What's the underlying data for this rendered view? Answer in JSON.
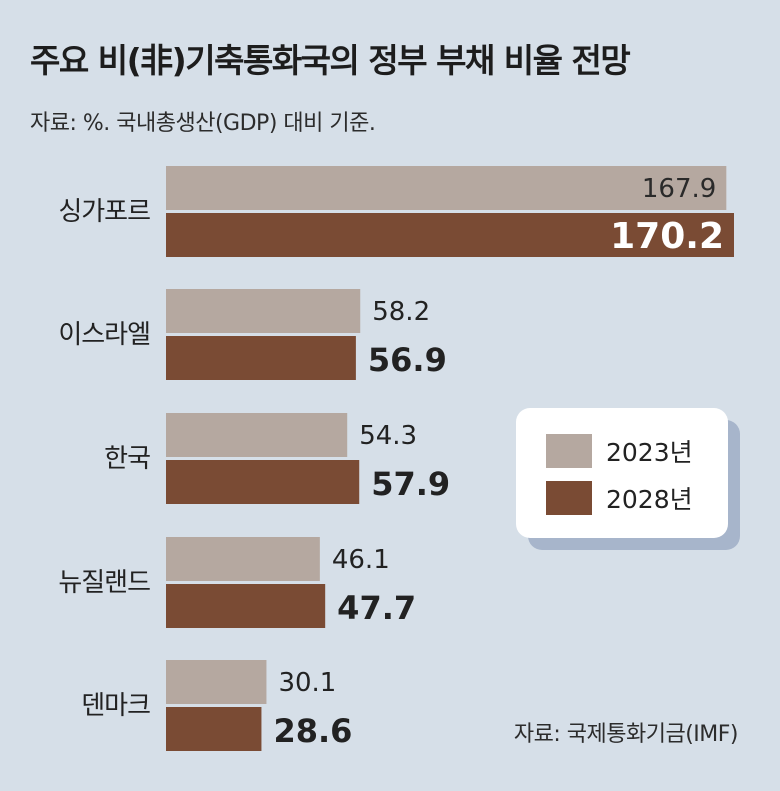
{
  "title": "주요 비(非)기축통화국의 정부 부채 비율 전망",
  "subtitle": "자료: %. 국내총생산(GDP) 대비 기준.",
  "source": "자료: 국제통화기금(IMF)",
  "colors": {
    "background": "#d6dfe8",
    "series_2023": "#b5a8a0",
    "series_2028": "#7a4b34"
  },
  "chart_data": {
    "type": "bar",
    "orientation": "horizontal",
    "categories": [
      "싱가포르",
      "이스라엘",
      "한국",
      "뉴질랜드",
      "덴마크"
    ],
    "series": [
      {
        "name": "2023년",
        "values": [
          167.9,
          58.2,
          54.3,
          46.1,
          30.1
        ]
      },
      {
        "name": "2028년",
        "values": [
          170.2,
          56.9,
          57.9,
          47.7,
          28.6
        ]
      }
    ],
    "value_labels": [
      [
        "167.9",
        "58.2",
        "54.3",
        "46.1",
        "30.1"
      ],
      [
        "170.2",
        "56.9",
        "57.9",
        "47.7",
        "28.6"
      ]
    ],
    "xlim": [
      0,
      170.2
    ],
    "legend_position": "right",
    "grid": false
  }
}
